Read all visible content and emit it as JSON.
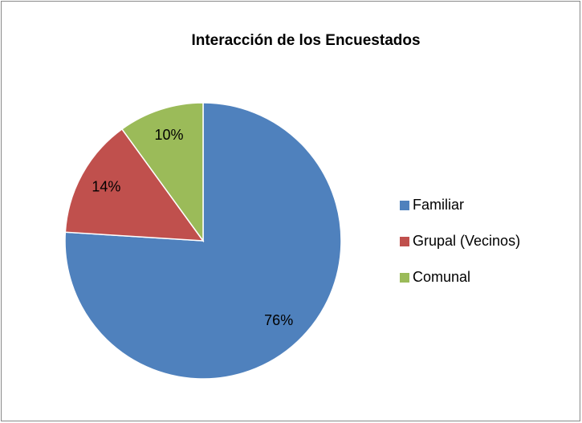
{
  "chart_data": {
    "type": "pie",
    "title": "Interacción de los Encuestados",
    "categories": [
      "Familiar",
      "Grupal (Vecinos)",
      "Comunal"
    ],
    "values": [
      76,
      14,
      10
    ],
    "value_labels": [
      "76%",
      "14%",
      "10%"
    ],
    "colors": [
      "#4f81bd",
      "#c0504d",
      "#9bbb59"
    ],
    "legend": "right"
  }
}
